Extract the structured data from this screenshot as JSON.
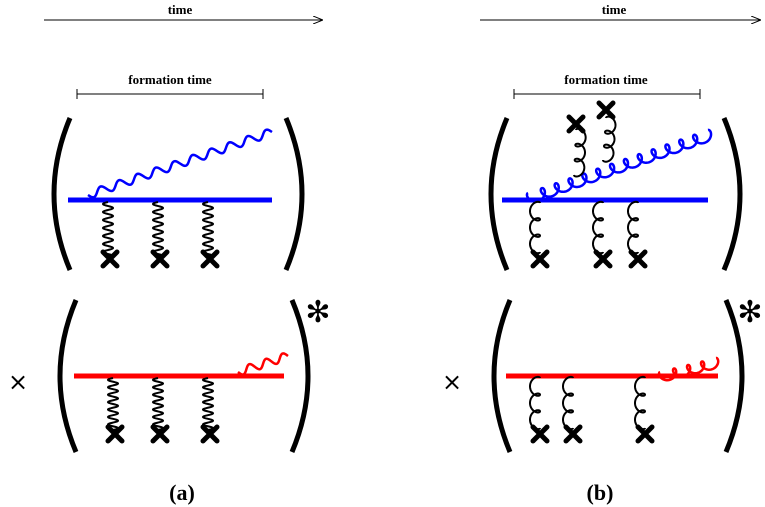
{
  "labels": {
    "time": "time",
    "formation_time": "formation time",
    "multiply": "×",
    "conjugate": "✻",
    "panel_a": "(a)",
    "panel_b": "(b)"
  },
  "colors": {
    "amplitude": "#0000ff",
    "conjugate_amplitude": "#ff0000",
    "ink": "#000000"
  },
  "icons": {
    "scattering_center": "cross-icon",
    "conjugate_mark": "asterisk-icon",
    "multiply": "times-icon"
  }
}
